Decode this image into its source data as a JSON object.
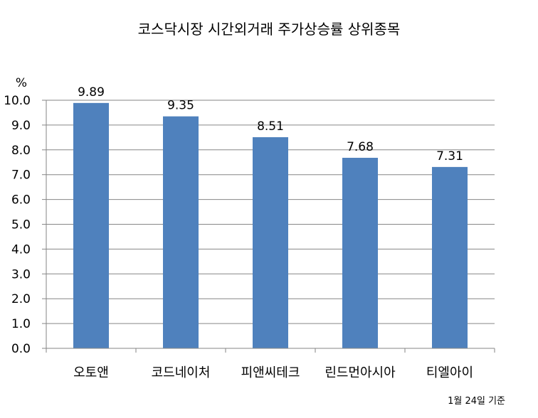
{
  "chart_data": {
    "type": "bar",
    "title": "코스닥시장 시간외거래  주가상승률 상위종목",
    "ylabel": "%",
    "xlabel": "",
    "categories": [
      "오토앤",
      "코드네이처",
      "피앤씨테크",
      "린드먼아시아",
      "티엘아이"
    ],
    "values": [
      9.89,
      9.35,
      8.51,
      7.68,
      7.31
    ],
    "data_labels": [
      "9.89",
      "9.35",
      "8.51",
      "7.68",
      "7.31"
    ],
    "ylim": [
      0,
      10
    ],
    "yticks": [
      "0.0",
      "1.0",
      "2.0",
      "3.0",
      "4.0",
      "5.0",
      "6.0",
      "7.0",
      "8.0",
      "9.0",
      "10.0"
    ],
    "grid": true,
    "legend": "none",
    "bar_color": "#4F81BD",
    "note": "1월 24일 기준"
  }
}
